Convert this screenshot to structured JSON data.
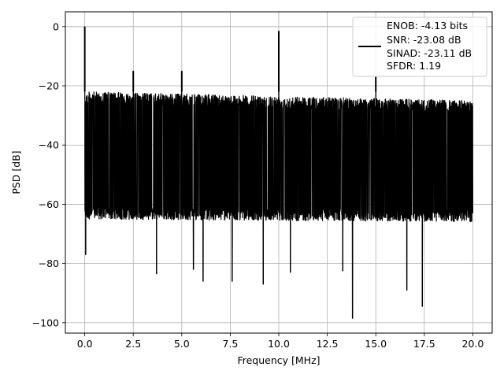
{
  "chart_data": {
    "type": "line",
    "title": "",
    "xlabel": "Frequency [MHz]",
    "ylabel": "PSD [dB]",
    "xlim": [
      -1.0,
      21.0
    ],
    "ylim": [
      -103.5,
      5.0
    ],
    "xticks": [
      0.0,
      2.5,
      5.0,
      7.5,
      10.0,
      12.5,
      15.0,
      17.5,
      20.0
    ],
    "xtick_labels": [
      "0.0",
      "2.5",
      "5.0",
      "7.5",
      "10.0",
      "12.5",
      "15.0",
      "17.5",
      "20.0"
    ],
    "yticks": [
      0,
      -20,
      -40,
      -60,
      -80,
      -100
    ],
    "ytick_labels": [
      "0",
      "−20",
      "−40",
      "−60",
      "−80",
      "−100"
    ],
    "grid": true,
    "legend_position": "upper-right",
    "series": [
      {
        "name": "ENOB: -4.13 bits\nSNR: -23.08 dB\nSINAD: -23.11 dB\nSFDR: 1.19",
        "legend_lines": [
          "ENOB: -4.13 bits",
          "SNR: -23.08 dB",
          "SINAD: -23.11 dB",
          "SFDR: 1.19"
        ],
        "color": "#000000",
        "noise_floor_band_db": [
          -65,
          -22
        ],
        "x_range_mhz": [
          0.0,
          20.0
        ],
        "spurs": [
          {
            "x": 0.0,
            "y": 0.0
          },
          {
            "x": 2.5,
            "y": -15.0
          },
          {
            "x": 5.0,
            "y": -15.0
          },
          {
            "x": 10.0,
            "y": -1.5
          },
          {
            "x": 15.0,
            "y": -17.0
          }
        ],
        "deep_nulls": [
          {
            "x": 0.05,
            "y": -77.0
          },
          {
            "x": 3.7,
            "y": -83.5
          },
          {
            "x": 5.6,
            "y": -82.0
          },
          {
            "x": 6.1,
            "y": -86.0
          },
          {
            "x": 7.6,
            "y": -86.0
          },
          {
            "x": 9.2,
            "y": -87.0
          },
          {
            "x": 10.6,
            "y": -83.0
          },
          {
            "x": 13.3,
            "y": -82.5
          },
          {
            "x": 13.8,
            "y": -98.5
          },
          {
            "x": 16.6,
            "y": -89.0
          },
          {
            "x": 17.4,
            "y": -94.5
          }
        ]
      }
    ]
  }
}
